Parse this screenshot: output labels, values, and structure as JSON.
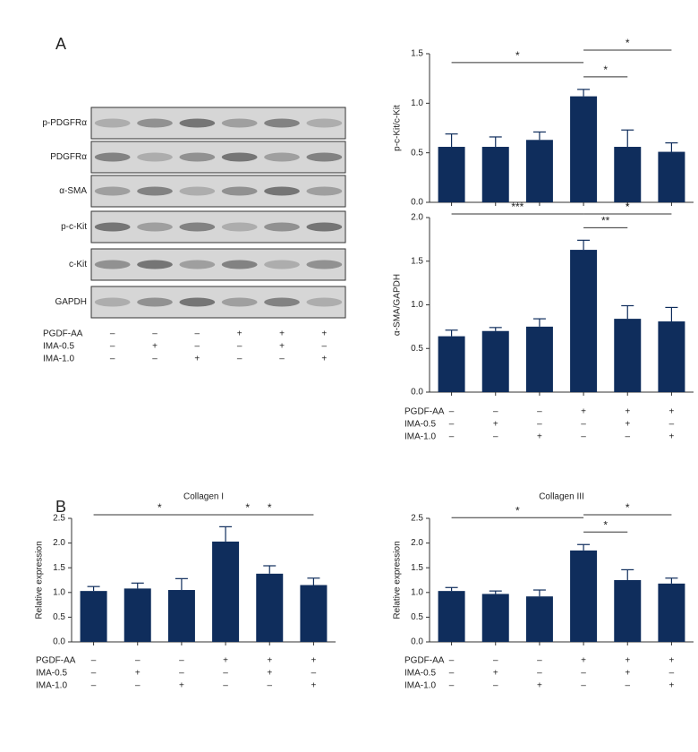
{
  "panels": [
    "A",
    "B"
  ],
  "blot": {
    "rows": [
      "p-PDGFRα",
      "PDGFRα",
      "α-SMA",
      "p-c-Kit",
      "c-Kit",
      "GAPDH"
    ],
    "conditions": [
      {
        "label": "PGDF-AA",
        "signs": [
          "–",
          "–",
          "–",
          "+",
          "+",
          "+"
        ]
      },
      {
        "label": "IMA-0.5",
        "signs": [
          "–",
          "+",
          "–",
          "–",
          "+",
          "–"
        ]
      },
      {
        "label": "IMA-1.0",
        "signs": [
          "–",
          "–",
          "+",
          "–",
          "–",
          "+"
        ]
      }
    ]
  },
  "chart_data": [
    {
      "type": "bar",
      "y_label": "p-c-Kit/c-Kit",
      "categories": [
        null,
        null,
        null,
        null,
        null,
        null
      ],
      "values": [
        0.56,
        0.56,
        0.63,
        1.07,
        0.56,
        0.51
      ],
      "errors": [
        0.13,
        0.1,
        0.08,
        0.07,
        0.17,
        0.09
      ],
      "color": "#0f2d5c",
      "ylim": [
        0,
        1.5
      ],
      "yticks": [
        {
          "value": 0,
          "label": "0.0"
        },
        0.5,
        {
          "value": 1,
          "label": "1.0"
        },
        1.5
      ],
      "annotations": [
        {
          "text": "*",
          "between": [
            3,
            4
          ]
        },
        {
          "text": "*",
          "between": [
            0,
            3
          ]
        },
        {
          "text": "*",
          "between": [
            3,
            5
          ]
        }
      ]
    },
    {
      "type": "bar",
      "y_label": "α-SMA/GAPDH",
      "categories": [
        null,
        null,
        null,
        null,
        null,
        null
      ],
      "values": [
        0.64,
        0.7,
        0.75,
        1.63,
        0.84,
        0.81
      ],
      "errors": [
        0.07,
        0.04,
        0.09,
        0.11,
        0.15,
        0.16
      ],
      "color": "#0f2d5c",
      "ylim": [
        0,
        2
      ],
      "yticks": [
        {
          "value": 0,
          "label": "0.0"
        },
        0.5,
        {
          "value": 1,
          "label": "1.0"
        },
        1.5,
        {
          "value": 2,
          "label": "2.0"
        }
      ],
      "annotations": [
        {
          "text": "**",
          "between": [
            3,
            4
          ]
        },
        {
          "text": "***",
          "between": [
            0,
            3
          ]
        },
        {
          "text": "*",
          "between": [
            3,
            5
          ]
        }
      ],
      "conditions": [
        {
          "label": "PGDF-AA",
          "signs": [
            "–",
            "–",
            "–",
            "+",
            "+",
            "+"
          ]
        },
        {
          "label": "IMA-0.5",
          "signs": [
            "–",
            "+",
            "–",
            "–",
            "+",
            "–"
          ]
        },
        {
          "label": "IMA-1.0",
          "signs": [
            "–",
            "–",
            "+",
            "–",
            "–",
            "+"
          ]
        }
      ]
    },
    {
      "type": "bar",
      "title": "Collagen I",
      "y_label": "Relative expression",
      "categories": [
        null,
        null,
        null,
        null,
        null,
        null
      ],
      "values": [
        1.03,
        1.08,
        1.05,
        2.03,
        1.38,
        1.15
      ],
      "errors": [
        0.09,
        0.11,
        0.23,
        0.3,
        0.16,
        0.14
      ],
      "color": "#0f2d5c",
      "ylim": [
        0,
        2.5
      ],
      "yticks": [
        {
          "value": 0,
          "label": "0.0"
        },
        0.5,
        {
          "value": 1,
          "label": "1.0"
        },
        1.5,
        {
          "value": 2,
          "label": "2.0"
        },
        2.5
      ],
      "annotations": [
        {
          "text": "*",
          "between": [
            3,
            4
          ]
        },
        {
          "text": "*",
          "between": [
            0,
            3
          ]
        },
        {
          "text": "*",
          "between": [
            3,
            5
          ]
        }
      ],
      "conditions": [
        {
          "label": "PGDF-AA",
          "signs": [
            "–",
            "–",
            "–",
            "+",
            "+",
            "+"
          ]
        },
        {
          "label": "IMA-0.5",
          "signs": [
            "–",
            "+",
            "–",
            "–",
            "+",
            "–"
          ]
        },
        {
          "label": "IMA-1.0",
          "signs": [
            "–",
            "–",
            "+",
            "–",
            "–",
            "+"
          ]
        }
      ]
    },
    {
      "type": "bar",
      "title": "Collagen III",
      "y_label": "Relative expression",
      "categories": [
        null,
        null,
        null,
        null,
        null,
        null
      ],
      "values": [
        1.03,
        0.97,
        0.92,
        1.85,
        1.25,
        1.18
      ],
      "errors": [
        0.07,
        0.06,
        0.13,
        0.12,
        0.21,
        0.11
      ],
      "color": "#0f2d5c",
      "ylim": [
        0,
        2.5
      ],
      "yticks": [
        {
          "value": 0,
          "label": "0.0"
        },
        0.5,
        {
          "value": 1,
          "label": "1.0"
        },
        1.5,
        {
          "value": 2,
          "label": "2.0"
        },
        2.5
      ],
      "annotations": [
        {
          "text": "*",
          "between": [
            3,
            4
          ]
        },
        {
          "text": "*",
          "between": [
            0,
            3
          ]
        },
        {
          "text": "*",
          "between": [
            3,
            5
          ]
        }
      ],
      "conditions": [
        {
          "label": "PGDF-AA",
          "signs": [
            "–",
            "–",
            "–",
            "+",
            "+",
            "+"
          ]
        },
        {
          "label": "IMA-0.5",
          "signs": [
            "–",
            "+",
            "–",
            "–",
            "+",
            "–"
          ]
        },
        {
          "label": "IMA-1.0",
          "signs": [
            "–",
            "–",
            "+",
            "–",
            "–",
            "+"
          ]
        }
      ]
    }
  ]
}
